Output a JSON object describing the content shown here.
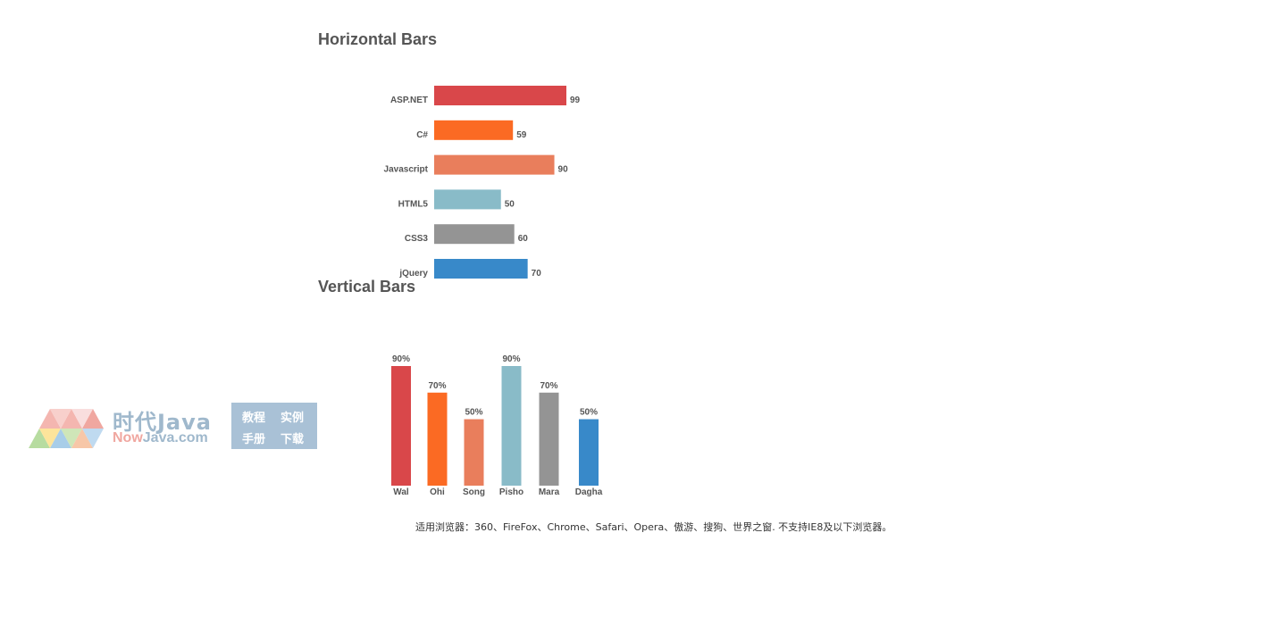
{
  "page": {
    "footer_note": "适用浏览器：360、FireFox、Chrome、Safari、Opera、傲游、搜狗、世界之窗. 不支持IE8及以下浏览器。"
  },
  "watermark": {
    "title_cn": "时代Java",
    "site_now": "Now",
    "site_rest": "Java.com",
    "box_items": [
      "教程",
      "实例",
      "手册",
      "下载"
    ]
  },
  "chart_data": [
    {
      "type": "bar",
      "orientation": "horizontal",
      "title": "Horizontal Bars",
      "categories": [
        "ASP.NET",
        "C#",
        "Javascript",
        "HTML5",
        "CSS3",
        "jQuery"
      ],
      "values": [
        99,
        59,
        90,
        50,
        60,
        70
      ],
      "value_labels": [
        "99",
        "59",
        "90",
        "50",
        "60",
        "70"
      ],
      "colors": [
        "#d9474a",
        "#fb6a23",
        "#e97e5c",
        "#89bbc8",
        "#949494",
        "#3889c9"
      ],
      "xlim": [
        0,
        100
      ],
      "grid": false
    },
    {
      "type": "bar",
      "orientation": "vertical",
      "title": "Vertical Bars",
      "categories": [
        "Wal",
        "Ohi",
        "Song",
        "Pisho",
        "Mara",
        "Dagha"
      ],
      "values": [
        90,
        70,
        50,
        90,
        70,
        50
      ],
      "value_labels": [
        "90%",
        "70%",
        "50%",
        "90%",
        "70%",
        "50%"
      ],
      "colors": [
        "#d9474a",
        "#fb6a23",
        "#e97e5c",
        "#89bbc8",
        "#949494",
        "#3889c9"
      ],
      "ylim": [
        0,
        100
      ],
      "grid": false
    }
  ]
}
